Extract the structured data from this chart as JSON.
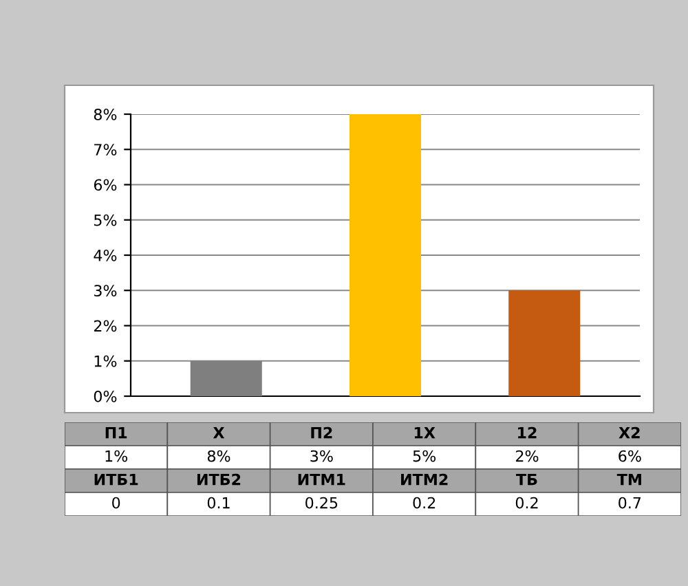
{
  "chart_data": [
    {
      "type": "bar",
      "categories": [
        null,
        null,
        null
      ],
      "values": [
        1,
        8,
        3
      ],
      "colors": [
        "#7f7f7f",
        "#ffc000",
        "#c55a11"
      ],
      "ylim": [
        0,
        8
      ],
      "yticks": [
        {
          "value": 0,
          "label": "0%"
        },
        {
          "value": 1,
          "label": "1%"
        },
        {
          "value": 2,
          "label": "2%"
        },
        {
          "value": 3,
          "label": "3%"
        },
        {
          "value": 4,
          "label": "4%"
        },
        {
          "value": 5,
          "label": "5%"
        },
        {
          "value": 6,
          "label": "6%"
        },
        {
          "value": 7,
          "label": "7%"
        },
        {
          "value": 8,
          "label": "8%"
        }
      ],
      "grid": "y"
    },
    {
      "type": "other",
      "annotations": [
        "П1",
        "Х",
        "П2",
        "1Х",
        "12",
        "Х2",
        "1%",
        "8%",
        "3%",
        "5%",
        "2%",
        "6%",
        "ИТБ1",
        "ИТБ2",
        "ИТМ1",
        "ИТМ2",
        "ТБ",
        "ТМ",
        "0",
        "0.1",
        "0.25",
        "0.2",
        "0.2",
        "0.7"
      ]
    }
  ]
}
